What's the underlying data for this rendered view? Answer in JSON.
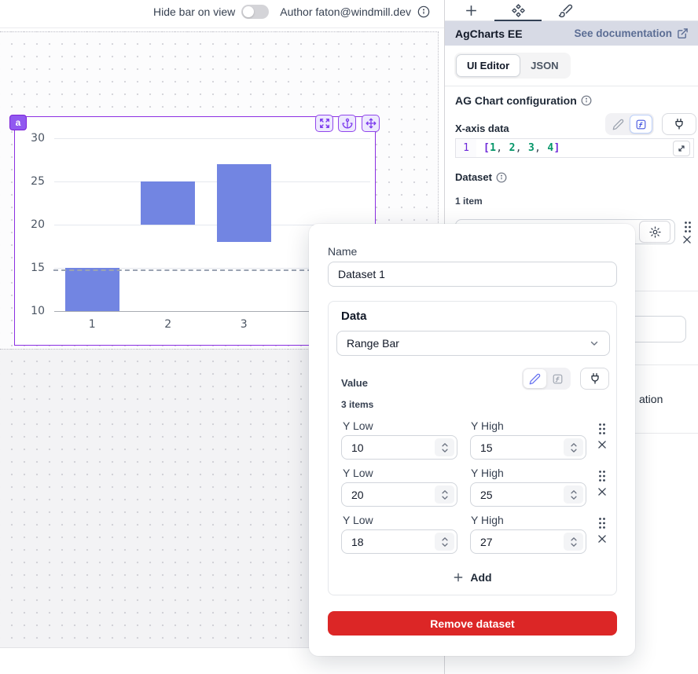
{
  "topbar": {
    "hide_bar_label": "Hide bar on view",
    "author_label": "Author faton@windmill.dev"
  },
  "right_panel": {
    "title": "AgCharts EE",
    "doc_link_label": "See documentation",
    "mode_tabs": {
      "ui_editor": "UI Editor",
      "json": "JSON"
    },
    "section_title": "AG Chart configuration",
    "xaxis": {
      "label": "X-axis data",
      "line_number": "1",
      "code": "[1, 2, 3, 4]"
    },
    "dataset": {
      "label": "Dataset",
      "count_label": "1 item"
    },
    "hidden_fragment": "ation"
  },
  "component": {
    "badge": "a"
  },
  "chart_data": {
    "type": "bar",
    "subtype": "range-bar",
    "categories": [
      "1",
      "2",
      "3",
      "4"
    ],
    "series": [
      {
        "name": "Dataset 1",
        "ranges": [
          [
            10,
            15
          ],
          [
            20,
            25
          ],
          [
            18,
            27
          ]
        ]
      }
    ],
    "title": "",
    "xlabel": "",
    "ylabel": "",
    "ylim": [
      10,
      30
    ],
    "yticks": [
      10,
      15,
      20,
      25,
      30
    ],
    "grid": true,
    "legend": false,
    "bar_color": "#7285e2"
  },
  "modal": {
    "name_label": "Name",
    "name_value": "Dataset 1",
    "data_section": {
      "title": "Data",
      "type_value": "Range Bar",
      "value_label": "Value",
      "items_count": "3 items",
      "rows": [
        {
          "y_low_label": "Y Low",
          "y_high_label": "Y High",
          "y_low": "10",
          "y_high": "15"
        },
        {
          "y_low_label": "Y Low",
          "y_high_label": "Y High",
          "y_low": "20",
          "y_high": "25"
        },
        {
          "y_low_label": "Y Low",
          "y_high_label": "Y High",
          "y_low": "18",
          "y_high": "27"
        }
      ],
      "add_label": "Add"
    },
    "remove_label": "Remove dataset"
  },
  "colors": {
    "accent_purple": "#7c3aed",
    "bar_blue": "#7285e2",
    "danger_red": "#dc2626",
    "link_slate": "#5b6d94",
    "active_indigo": "#6366f1"
  }
}
